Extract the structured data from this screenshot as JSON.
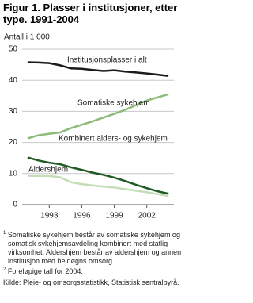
{
  "chart_data": {
    "type": "line",
    "title": "Figur 1. Plasser i institusjoner, etter type. 1991-2004",
    "y_label": "Antall i 1 000",
    "x": [
      1991,
      1992,
      1993,
      1994,
      1995,
      1996,
      1997,
      1998,
      1999,
      2000,
      2001,
      2002,
      2003,
      2004
    ],
    "xlim": [
      1990.5,
      2004.5
    ],
    "xticks": [
      1993,
      1996,
      1999,
      2002
    ],
    "ylim": [
      0,
      50
    ],
    "yticks": [
      0,
      10,
      20,
      30,
      40,
      50
    ],
    "grid": true,
    "series": [
      {
        "name": "Institusjonsplasser i alt",
        "color": "#1a1a1a",
        "values": [
          45.8,
          45.7,
          45.5,
          44.8,
          43.8,
          43.7,
          43.3,
          43.0,
          43.2,
          42.8,
          42.5,
          42.2,
          41.8,
          41.4
        ]
      },
      {
        "name": "Somatiske sykehjem",
        "color": "#8dbb78",
        "values": [
          21.3,
          22.3,
          22.8,
          23.2,
          24.6,
          25.7,
          26.8,
          28.0,
          29.2,
          30.5,
          32.0,
          33.5,
          34.5,
          35.5
        ]
      },
      {
        "name": "Kombinert alders- og sykehjem",
        "color": "#1f5a23",
        "values": [
          15.2,
          14.2,
          13.5,
          13.0,
          12.0,
          11.2,
          10.3,
          9.6,
          8.7,
          7.6,
          6.4,
          5.3,
          4.3,
          3.5
        ]
      },
      {
        "name": "Aldershjem",
        "color": "#c3ddb7",
        "values": [
          9.3,
          9.2,
          9.2,
          8.8,
          7.2,
          6.6,
          6.2,
          5.8,
          5.5,
          5.0,
          4.5,
          4.0,
          3.4,
          2.8
        ]
      }
    ],
    "notes": [
      {
        "marker": "1",
        "text": "Somatiske sykehjem består av somatiske sykehjem og somatisk sykehjemsavdeling kombinert med statlig virksomhet. Aldershjem består av aldershjem og annen institusjon med heldøgns omsorg."
      },
      {
        "marker": "2",
        "text": "Foreløpige tall for 2004."
      }
    ],
    "source": "Kilde: Pleie- og omsorgsstatistikk, Statistisk sentralbyrå."
  }
}
